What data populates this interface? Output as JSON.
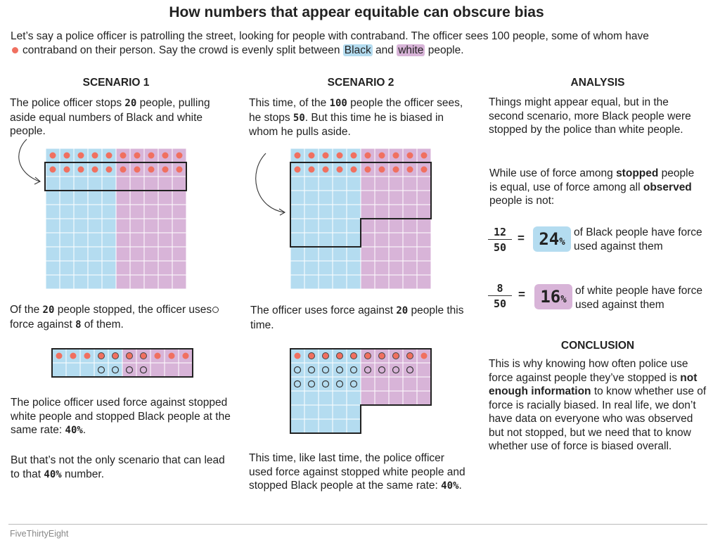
{
  "title": "How numbers that appear equitable can obscure bias",
  "intro": {
    "part1": "Let’s say a police officer is patrolling the street, looking for people with contraband. The officer sees 100 people, some of whom have",
    "part2": "contraband on their person. Say the crowd is evenly split between",
    "black_label": "Black",
    "and": "and",
    "white_label": "white",
    "part3": "people."
  },
  "scenario1": {
    "heading": "SCENARIO 1",
    "p1_a": "The police officer stops ",
    "p1_num": "20",
    "p1_b": " people, pulling aside equal numbers of Black and white people.",
    "p2_a": "Of the ",
    "p2_num1": "20",
    "p2_b": " people stopped, the officer uses",
    "p2_c": " force against ",
    "p2_num2": "8",
    "p2_d": " of them.",
    "p3_a": "The police officer used force against stopped white people and stopped Black people at the same rate: ",
    "p3_num": "40%",
    "p3_b": ".",
    "p4_a": "But that’s not the only scenario that can lead to that ",
    "p4_num": "40%",
    "p4_b": " number."
  },
  "scenario2": {
    "heading": "SCENARIO 2",
    "p1_a": "This time, of the ",
    "p1_num1": "100",
    "p1_b": " people the officer sees, he stops ",
    "p1_num2": "50",
    "p1_c": ". But this time he is biased in whom he pulls aside.",
    "p2_a": "The officer uses force against ",
    "p2_num": "20",
    "p2_b": " people this time.",
    "p3_a": "This time, like last time, the police officer used force against stopped white people and stopped Black people at the same rate: ",
    "p3_num": "40%",
    "p3_b": "."
  },
  "analysis": {
    "heading": "ANALYSIS",
    "p1": "Things might appear equal, but in the second scenario, more Black people were stopped by the police than white people.",
    "p2_a": "While use of force among ",
    "p2_bold1": "stopped",
    "p2_b": " people is equal, use of force among all ",
    "p2_bold2": "observed",
    "p2_c": " people is not:",
    "black_frac": {
      "num": "12",
      "den": "50",
      "eq": "=",
      "pct": "24",
      "pct_sym": "%",
      "text": "of Black people have force used against them"
    },
    "white_frac": {
      "num": "8",
      "den": "50",
      "eq": "=",
      "pct": "16",
      "pct_sym": "%",
      "text": "of white people have force used against them"
    }
  },
  "conclusion": {
    "heading": "CONCLUSION",
    "p_a": "This is why knowing how often police use force against people they’ve stopped is ",
    "p_bold": "not enough information",
    "p_b": " to know whether use of force is racially biased. In real life, we don’t have data on everyone who was observed but not stopped, but we need that to know whether use of force is biased overall."
  },
  "credit": "FiveThirtyEight",
  "colors": {
    "black_cell": "#b4dcf0",
    "white_cell": "#d8b4d8",
    "contraband_dot": "#f07060",
    "outline": "#222222"
  }
}
